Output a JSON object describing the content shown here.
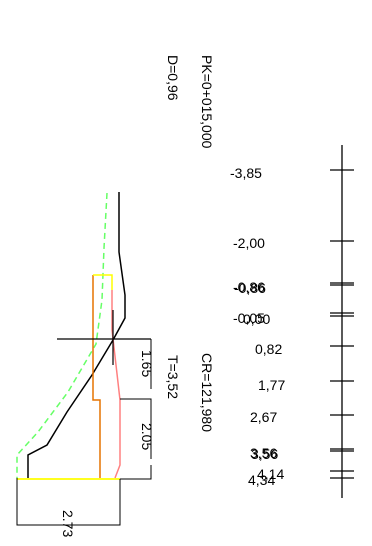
{
  "header": {
    "pk": "PK=0+015,000",
    "d": "D=0,96"
  },
  "section": {
    "cr": "CR=121,980",
    "t": "T=3,52",
    "dim_165": "1.65",
    "dim_205": "2.05",
    "dim_273": "2.73"
  },
  "offsets": [
    "-3,85",
    "-2,00",
    "-0,86",
    "-0,86",
    "-0,05",
    "0,00",
    "0,82",
    "1,77",
    "2,67",
    "3,56",
    "3,56",
    "4,14",
    "4,34"
  ],
  "colors": {
    "ground": "#000000",
    "dashed_line": "#66ff66",
    "orange_layer": "#e67300",
    "yellow_layer": "#ffff00",
    "pink_layer": "#ff8080"
  }
}
